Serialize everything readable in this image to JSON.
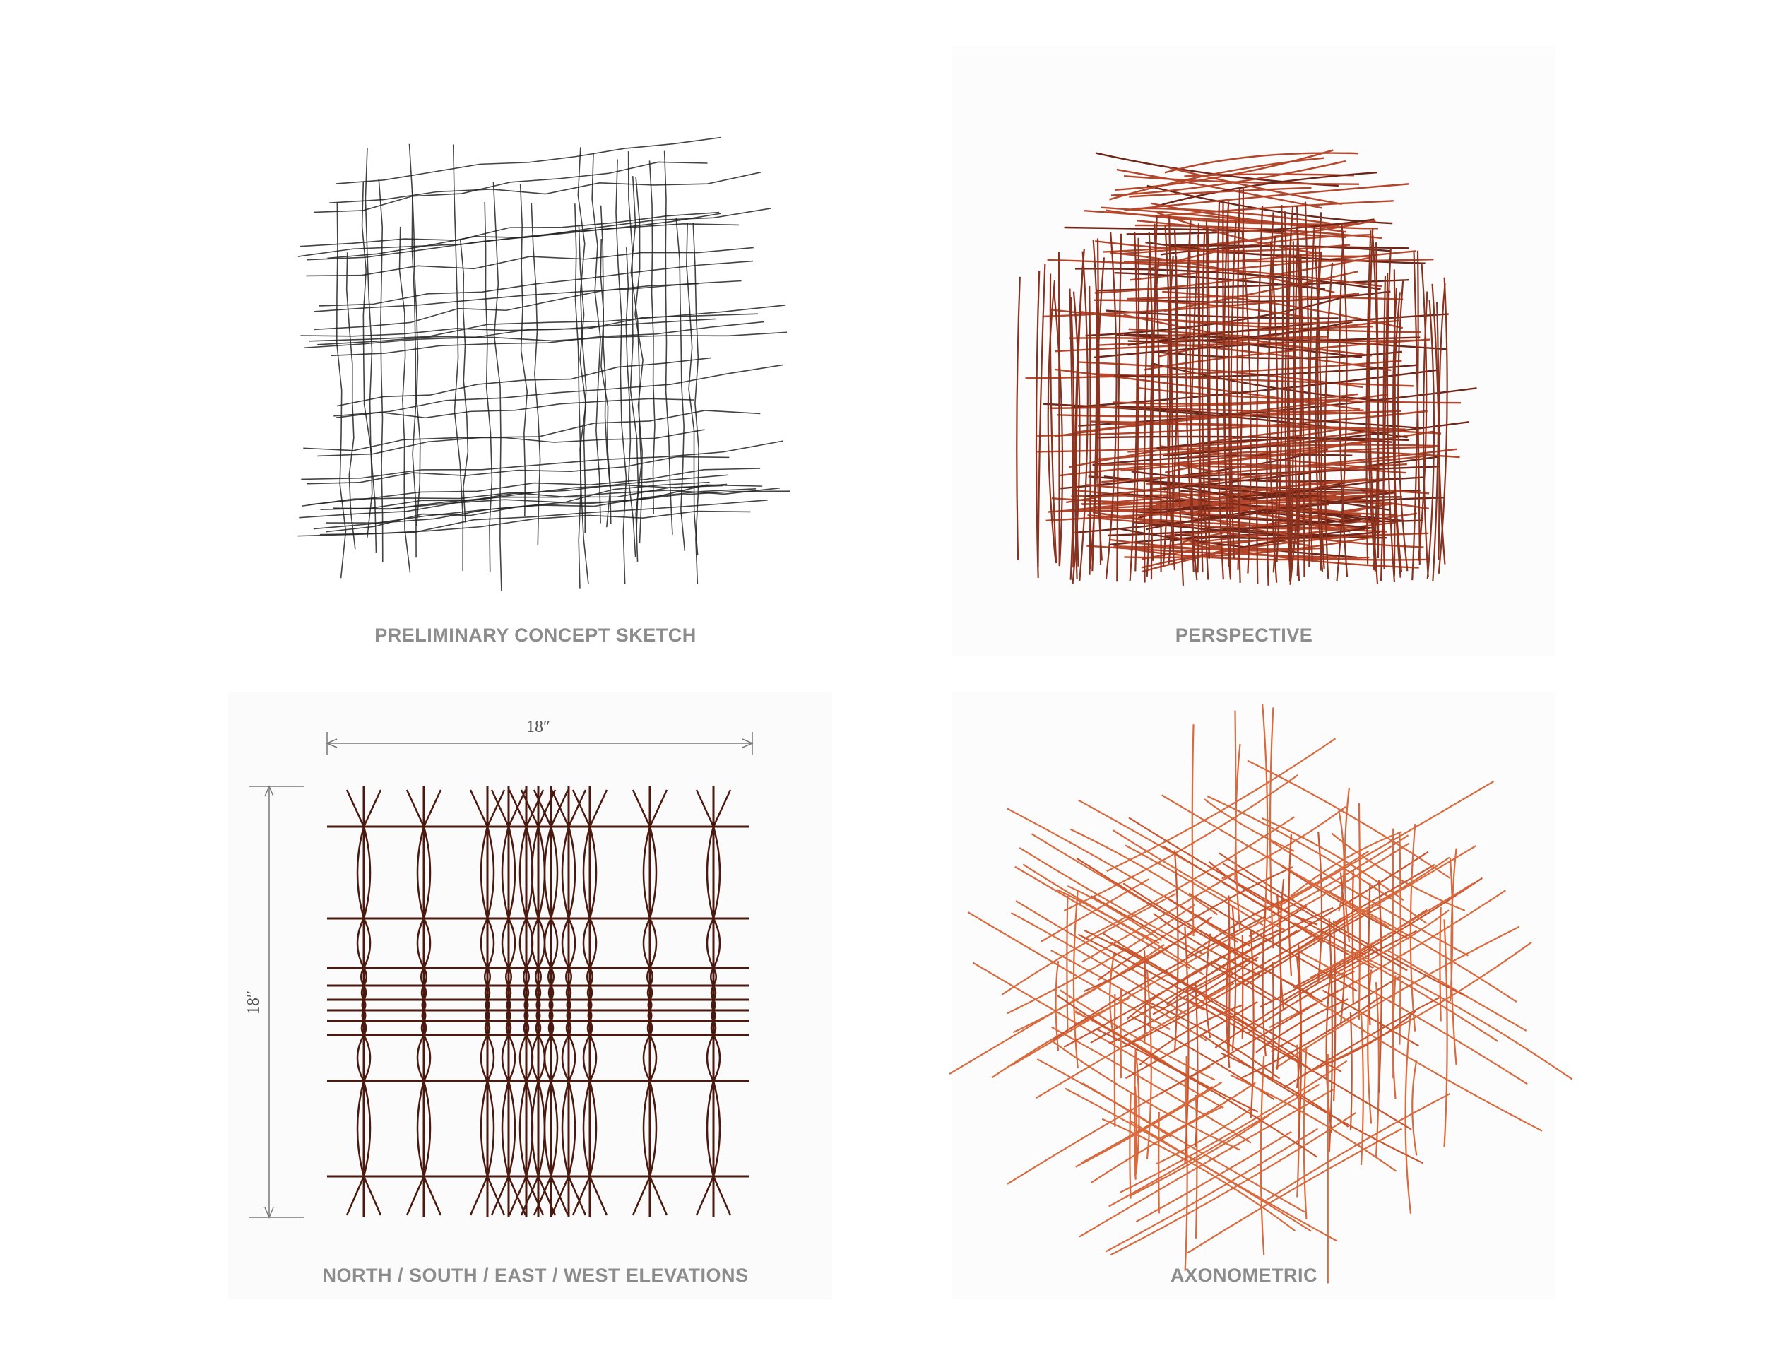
{
  "panels": [
    {
      "caption": "PRELIMINARY CONCEPT SKETCH"
    },
    {
      "caption": "PERSPECTIVE"
    },
    {
      "caption": "NORTH / SOUTH / EAST / WEST ELEVATIONS"
    },
    {
      "caption": "AXONOMETRIC"
    }
  ],
  "dimensions": {
    "width": "18″",
    "height": "18″"
  }
}
